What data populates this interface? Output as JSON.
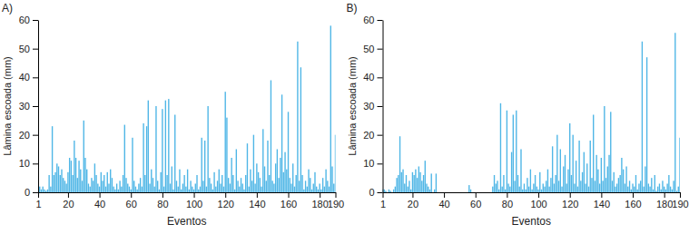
{
  "chart_data": [
    {
      "type": "bar",
      "title": "A)",
      "x_label": "Eventos",
      "y_label": "Lâmina escoada (mm)",
      "color": "#4fb6e6",
      "x": [
        1,
        2,
        3,
        4,
        5,
        6,
        7,
        8,
        9,
        10,
        11,
        12,
        13,
        14,
        15,
        16,
        17,
        18,
        19,
        20,
        21,
        22,
        23,
        24,
        25,
        26,
        27,
        28,
        29,
        30,
        31,
        32,
        33,
        34,
        35,
        36,
        37,
        38,
        39,
        40,
        41,
        42,
        43,
        44,
        45,
        46,
        47,
        48,
        49,
        50,
        51,
        52,
        53,
        54,
        55,
        56,
        57,
        58,
        59,
        60,
        61,
        62,
        63,
        64,
        65,
        66,
        67,
        68,
        69,
        70,
        71,
        72,
        73,
        74,
        75,
        76,
        77,
        78,
        79,
        80,
        81,
        82,
        83,
        84,
        85,
        86,
        87,
        88,
        89,
        90,
        91,
        92,
        93,
        94,
        95,
        96,
        97,
        98,
        99,
        100,
        101,
        102,
        103,
        104,
        105,
        106,
        107,
        108,
        109,
        110,
        111,
        112,
        113,
        114,
        115,
        116,
        117,
        118,
        119,
        120,
        121,
        122,
        123,
        124,
        125,
        126,
        127,
        128,
        129,
        130,
        131,
        132,
        133,
        134,
        135,
        136,
        137,
        138,
        139,
        140,
        141,
        142,
        143,
        144,
        145,
        146,
        147,
        148,
        149,
        150,
        151,
        152,
        153,
        154,
        155,
        156,
        157,
        158,
        159,
        160,
        161,
        162,
        163,
        164,
        165,
        166,
        167,
        168,
        169,
        170,
        171,
        172,
        173,
        174,
        175,
        176,
        177,
        178,
        179,
        180,
        181,
        182,
        183,
        184,
        185,
        186,
        187,
        188,
        189,
        190
      ],
      "values": [
        1,
        2,
        1,
        2,
        1,
        0.5,
        1,
        6,
        2,
        23,
        6,
        7,
        10,
        9,
        6,
        8,
        5,
        4,
        3,
        7,
        12,
        11,
        6,
        18,
        12,
        5,
        11,
        8,
        4,
        25,
        12,
        8,
        3,
        2,
        5,
        4,
        10,
        6,
        3,
        2,
        7,
        4,
        6,
        2,
        7,
        3,
        8,
        5,
        2,
        1,
        3,
        1,
        4,
        2,
        6,
        23.5,
        5,
        3,
        2,
        1,
        19,
        4,
        2,
        1,
        3,
        5,
        2,
        24,
        6,
        23,
        32,
        3,
        8,
        5,
        2,
        30,
        4,
        1,
        7,
        29,
        2,
        32,
        6,
        32.5,
        3,
        9,
        1,
        27,
        4,
        2,
        8,
        1,
        3,
        6,
        2,
        8,
        1,
        4,
        2,
        1,
        3,
        6,
        1,
        2,
        19,
        4,
        18,
        2,
        30,
        5,
        3,
        1,
        7,
        2,
        4,
        8,
        3,
        6,
        2,
        35,
        26,
        5,
        3,
        12,
        6,
        1,
        15,
        4,
        2,
        5,
        3,
        1,
        6,
        17,
        2,
        8,
        4,
        20,
        3,
        10,
        7,
        5,
        2,
        22,
        9,
        4,
        18,
        6,
        39,
        4,
        3,
        10,
        15,
        5,
        12,
        34,
        7,
        14,
        8,
        28,
        5,
        3,
        10,
        2,
        6,
        52.5,
        4,
        43.5,
        6,
        1,
        4,
        2,
        8,
        5,
        1,
        3,
        7,
        2,
        1,
        3,
        1,
        5,
        2,
        8,
        4,
        2,
        58,
        9,
        3,
        20
      ],
      "xlim": [
        1,
        190
      ],
      "xticks": [
        1,
        20,
        40,
        60,
        80,
        100,
        120,
        140,
        160,
        180,
        190
      ],
      "ylim": [
        0,
        60
      ],
      "yticks": [
        0,
        10,
        20,
        30,
        40,
        50,
        60
      ]
    },
    {
      "type": "bar",
      "title": "B)",
      "x_label": "Eventos",
      "y_label": "Lâmina escoada (mm)",
      "color": "#4fb6e6",
      "x": [
        1,
        2,
        3,
        4,
        5,
        6,
        7,
        8,
        9,
        10,
        11,
        12,
        13,
        14,
        15,
        16,
        17,
        18,
        19,
        20,
        21,
        22,
        23,
        24,
        25,
        26,
        27,
        28,
        29,
        30,
        31,
        32,
        33,
        34,
        35,
        36,
        37,
        38,
        39,
        40,
        41,
        42,
        43,
        44,
        45,
        46,
        47,
        48,
        49,
        50,
        51,
        52,
        53,
        54,
        55,
        56,
        57,
        58,
        59,
        60,
        61,
        62,
        63,
        64,
        65,
        66,
        67,
        68,
        69,
        70,
        71,
        72,
        73,
        74,
        75,
        76,
        77,
        78,
        79,
        80,
        81,
        82,
        83,
        84,
        85,
        86,
        87,
        88,
        89,
        90,
        91,
        92,
        93,
        94,
        95,
        96,
        97,
        98,
        99,
        100,
        101,
        102,
        103,
        104,
        105,
        106,
        107,
        108,
        109,
        110,
        111,
        112,
        113,
        114,
        115,
        116,
        117,
        118,
        119,
        120,
        121,
        122,
        123,
        124,
        125,
        126,
        127,
        128,
        129,
        130,
        131,
        132,
        133,
        134,
        135,
        136,
        137,
        138,
        139,
        140,
        141,
        142,
        143,
        144,
        145,
        146,
        147,
        148,
        149,
        150,
        151,
        152,
        153,
        154,
        155,
        156,
        157,
        158,
        159,
        160,
        161,
        162,
        163,
        164,
        165,
        166,
        167,
        168,
        169,
        170,
        171,
        172,
        173,
        174,
        175,
        176,
        177,
        178,
        179,
        180,
        181,
        182,
        183,
        184,
        185,
        186,
        187,
        188,
        189,
        190
      ],
      "values": [
        1,
        1,
        0.5,
        0,
        1,
        0.5,
        0,
        1,
        2,
        5,
        6,
        19.5,
        7,
        8,
        3,
        6,
        2,
        4,
        1,
        7,
        6,
        8,
        5,
        9,
        7,
        4,
        6,
        11,
        3,
        2,
        1,
        6.5,
        0,
        1,
        6.5,
        0,
        0,
        0,
        0,
        0,
        0,
        0,
        0,
        0,
        0,
        0,
        0,
        0,
        0,
        0,
        0,
        0,
        0,
        0,
        0,
        2.5,
        1,
        0,
        0,
        0,
        0,
        0,
        0,
        0,
        0,
        0,
        0,
        0,
        0,
        0,
        2,
        6,
        3,
        4,
        1,
        31,
        2,
        6,
        1,
        28.5,
        3,
        2,
        14,
        27,
        4,
        28.5,
        6,
        2,
        15,
        1,
        3,
        1,
        5,
        2,
        8,
        1,
        3,
        6,
        2,
        1,
        7,
        1,
        3,
        2,
        4,
        8,
        2,
        5,
        16,
        3,
        6,
        20,
        4,
        15,
        2,
        9,
        13,
        3,
        8,
        24,
        6,
        20,
        3,
        11,
        2,
        18,
        4,
        7,
        14,
        3,
        10,
        2,
        18,
        5,
        27,
        4,
        13,
        8,
        3,
        12,
        4,
        30,
        5,
        9,
        13,
        28,
        4,
        7,
        2,
        3,
        5,
        6,
        12,
        8,
        3,
        9,
        2,
        4,
        1,
        3,
        2,
        6,
        1,
        3,
        4,
        52.5,
        2,
        9,
        47,
        3,
        2,
        5,
        1,
        6,
        0.5,
        2,
        3,
        1,
        4,
        2,
        1,
        3,
        6,
        2,
        1,
        4,
        55.5,
        0.5,
        2,
        19
      ],
      "xlim": [
        1,
        190
      ],
      "xticks": [
        1,
        20,
        40,
        60,
        80,
        100,
        120,
        140,
        160,
        180,
        190
      ],
      "ylim": [
        0,
        60
      ],
      "yticks": [
        0,
        10,
        20,
        30,
        40,
        50,
        60
      ]
    }
  ]
}
